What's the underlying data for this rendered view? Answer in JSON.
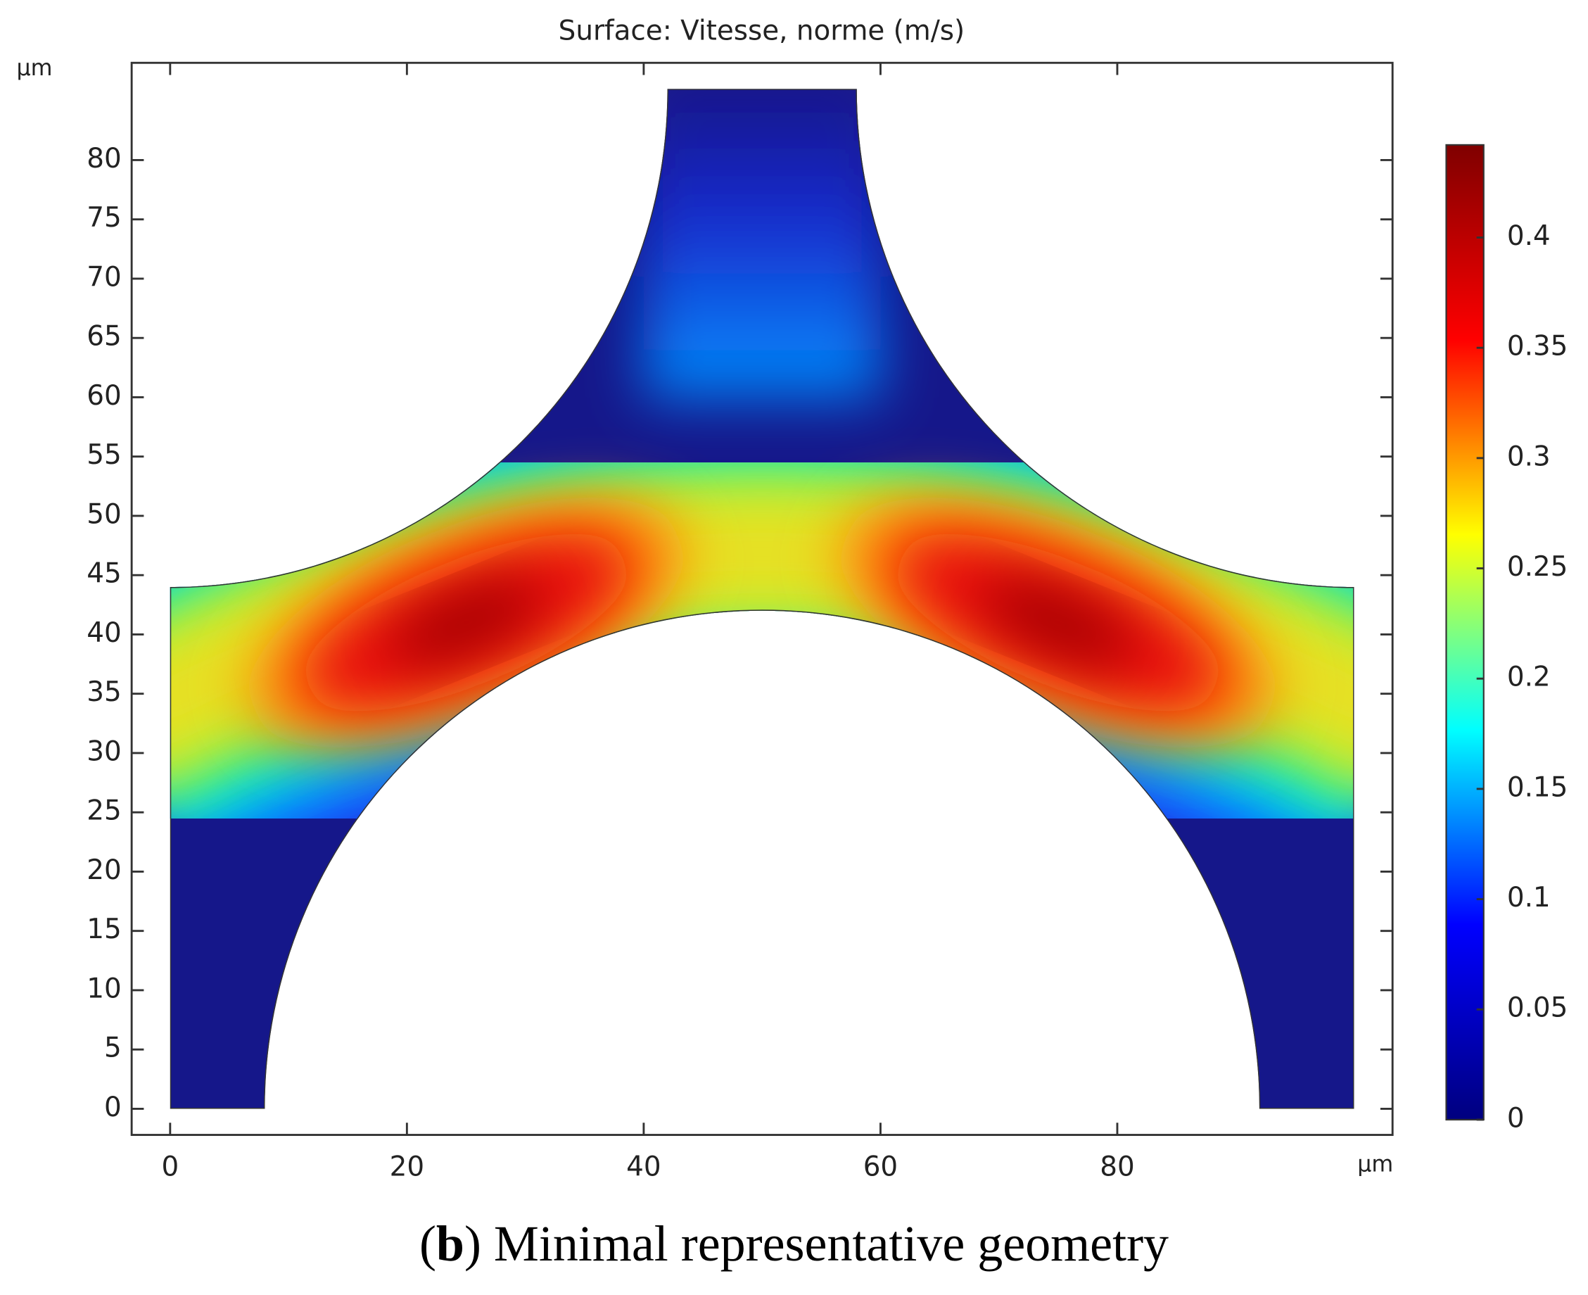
{
  "chart_data": {
    "type": "surface",
    "title": "Surface: Vitesse, norme (m/s)",
    "x_unit": "µm",
    "y_unit": "µm",
    "xlim": [
      -3.25,
      103.25
    ],
    "xticks": [
      0,
      20,
      40,
      60,
      80
    ],
    "ylim": [
      -2.2,
      88.2
    ],
    "yticks": [
      0,
      5,
      10,
      15,
      20,
      25,
      30,
      35,
      40,
      45,
      50,
      55,
      60,
      65,
      70,
      75,
      80
    ],
    "clim": [
      0,
      0.442
    ],
    "cticks": [
      0,
      0.05,
      0.1,
      0.15,
      0.2,
      0.25,
      0.3,
      0.35,
      0.4
    ],
    "colormap": [
      "#00007f",
      "#0000ff",
      "#00ffff",
      "#ffff00",
      "#ff0000",
      "#7f0000"
    ],
    "caption": {
      "open": "(",
      "label": "b",
      "close": ")",
      "text": "Minimal representative geometry"
    }
  }
}
